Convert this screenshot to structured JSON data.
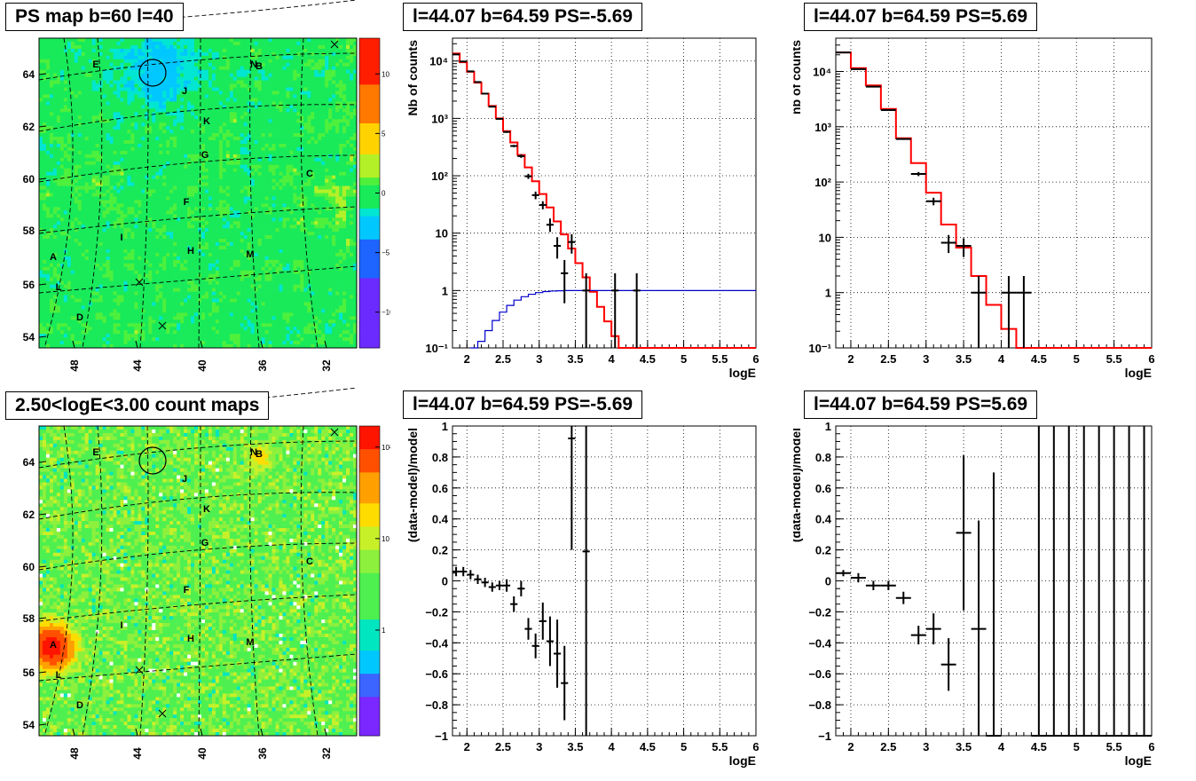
{
  "maps": [
    {
      "title": "PS map b=60 l=40",
      "type": "ps",
      "colorbar_ticks": [
        "10",
        "5",
        "0",
        "−5",
        "−10"
      ],
      "colorbar_values": [
        10,
        5,
        0,
        -5,
        -10
      ],
      "zrange": [
        -13,
        13
      ]
    },
    {
      "title": "2.50<logE<3.00 count maps",
      "type": "counts",
      "colorbar_ticks": [
        "10²",
        "10",
        "1"
      ],
      "colorbar_values": [
        100,
        10,
        1
      ],
      "zrange": [
        0.07,
        170
      ]
    }
  ],
  "map_axes": {
    "x_ticks": [
      "48",
      "44",
      "40",
      "36",
      "32"
    ],
    "y_ticks": [
      "64",
      "62",
      "60",
      "58",
      "56",
      "54"
    ]
  },
  "sources": [
    "E",
    "N",
    "B",
    "J",
    "K",
    "G",
    "C",
    "F",
    "I",
    "H",
    "M",
    "A",
    "L",
    "D"
  ],
  "chart_data": [
    {
      "type": "line",
      "title": "l=44.07 b=64.59 PS=-5.69",
      "xlabel": "logE",
      "ylabel": "Nb of counts",
      "yscale": "log",
      "xlim": [
        1.8,
        6
      ],
      "ylim": [
        0.1,
        25000
      ],
      "grid": true,
      "x_ticks": [
        "2",
        "2.5",
        "3",
        "3.5",
        "4",
        "4.5",
        "5",
        "5.5",
        "6"
      ],
      "y_ticks": [
        {
          "v": 10000,
          "label": "10⁴"
        },
        {
          "v": 1000,
          "label": "10³"
        },
        {
          "v": 100,
          "label": "10²"
        },
        {
          "v": 10,
          "label": "10"
        },
        {
          "v": 1,
          "label": "1"
        },
        {
          "v": 0.1,
          "label": "10⁻¹"
        }
      ],
      "series": [
        {
          "color": "#ff0000",
          "style": "step",
          "edges": [
            1.8,
            1.9,
            2.0,
            2.1,
            2.2,
            2.3,
            2.4,
            2.5,
            2.6,
            2.7,
            2.8,
            2.9,
            3.0,
            3.1,
            3.2,
            3.3,
            3.4,
            3.5,
            3.6,
            3.7,
            3.8,
            3.9,
            4.0,
            4.1,
            4.2,
            4.3,
            6.0
          ],
          "values": [
            13500,
            9500,
            6500,
            4200,
            2700,
            1650,
            1000,
            600,
            380,
            230,
            140,
            80,
            48,
            28,
            16,
            9.5,
            5.4,
            3.0,
            1.7,
            0.95,
            0.52,
            0.29,
            0.16,
            0.09,
            0.09,
            0.09
          ]
        },
        {
          "color": "#0000cc",
          "style": "step",
          "edges": [
            2.05,
            2.15,
            2.25,
            2.35,
            2.45,
            2.55,
            2.65,
            2.75,
            2.85,
            2.95,
            3.05,
            3.15,
            3.25,
            3.35,
            3.45,
            3.55,
            6.0
          ],
          "values": [
            0.1,
            0.13,
            0.2,
            0.3,
            0.42,
            0.55,
            0.68,
            0.78,
            0.86,
            0.92,
            0.96,
            0.98,
            0.99,
            1.0,
            1.0,
            1.0
          ]
        }
      ],
      "points": [
        {
          "x": 1.85,
          "y": 13000,
          "ylo": 12800,
          "yhi": 13200
        },
        {
          "x": 1.95,
          "y": 9800,
          "ylo": 9600,
          "yhi": 10000
        },
        {
          "x": 2.05,
          "y": 6600,
          "ylo": 6450,
          "yhi": 6750
        },
        {
          "x": 2.15,
          "y": 4300,
          "ylo": 4200,
          "yhi": 4400
        },
        {
          "x": 2.25,
          "y": 2700,
          "ylo": 2650,
          "yhi": 2750
        },
        {
          "x": 2.35,
          "y": 1600,
          "ylo": 1560,
          "yhi": 1640
        },
        {
          "x": 2.45,
          "y": 980,
          "ylo": 950,
          "yhi": 1010
        },
        {
          "x": 2.55,
          "y": 580,
          "ylo": 560,
          "yhi": 600
        },
        {
          "x": 2.65,
          "y": 330,
          "ylo": 315,
          "yhi": 345
        },
        {
          "x": 2.75,
          "y": 220,
          "ylo": 205,
          "yhi": 235
        },
        {
          "x": 2.85,
          "y": 98,
          "ylo": 88,
          "yhi": 108
        },
        {
          "x": 2.95,
          "y": 46,
          "ylo": 39,
          "yhi": 53
        },
        {
          "x": 3.05,
          "y": 31,
          "ylo": 26,
          "yhi": 36
        },
        {
          "x": 3.15,
          "y": 14,
          "ylo": 10.5,
          "yhi": 18
        },
        {
          "x": 3.25,
          "y": 6,
          "ylo": 3.6,
          "yhi": 8.5
        },
        {
          "x": 3.35,
          "y": 2,
          "ylo": 0.6,
          "yhi": 3.4
        },
        {
          "x": 3.45,
          "y": 7,
          "ylo": 4.4,
          "yhi": 9.6
        },
        {
          "x": 3.65,
          "y": 1,
          "ylo": 0.1,
          "yhi": 2
        },
        {
          "x": 4.05,
          "y": 1,
          "ylo": 0.1,
          "yhi": 2
        },
        {
          "x": 4.35,
          "y": 1,
          "ylo": 0.1,
          "yhi": 2
        }
      ]
    },
    {
      "type": "line",
      "title": "l=44.07 b=64.59 PS=5.69",
      "xlabel": "logE",
      "ylabel": "nb of counts",
      "yscale": "log",
      "xlim": [
        1.8,
        6
      ],
      "ylim": [
        0.1,
        40000
      ],
      "grid": true,
      "x_ticks": [
        "2",
        "2.5",
        "3",
        "3.5",
        "4",
        "4.5",
        "5",
        "5.5",
        "6"
      ],
      "y_ticks": [
        {
          "v": 10000,
          "label": "10⁴"
        },
        {
          "v": 1000,
          "label": "10³"
        },
        {
          "v": 100,
          "label": "10²"
        },
        {
          "v": 10,
          "label": "10"
        },
        {
          "v": 1,
          "label": "1"
        },
        {
          "v": 0.1,
          "label": "10⁻¹"
        }
      ],
      "series": [
        {
          "color": "#ff0000",
          "style": "step",
          "edges": [
            1.8,
            2.0,
            2.2,
            2.4,
            2.6,
            2.8,
            3.0,
            3.2,
            3.4,
            3.6,
            3.8,
            4.0,
            4.2,
            6.0
          ],
          "values": [
            22000,
            11500,
            5600,
            2100,
            620,
            220,
            64,
            17,
            6.5,
            2.0,
            0.6,
            0.22,
            0.09
          ]
        }
      ],
      "points": [
        {
          "x": 1.9,
          "y": 22000,
          "ylo": 21800,
          "yhi": 22200
        },
        {
          "x": 2.1,
          "y": 11000,
          "ylo": 10850,
          "yhi": 11150
        },
        {
          "x": 2.3,
          "y": 5300,
          "ylo": 5200,
          "yhi": 5400
        },
        {
          "x": 2.5,
          "y": 2000,
          "ylo": 1950,
          "yhi": 2050
        },
        {
          "x": 2.7,
          "y": 600,
          "ylo": 580,
          "yhi": 620
        },
        {
          "x": 2.9,
          "y": 140,
          "ylo": 128,
          "yhi": 152
        },
        {
          "x": 3.1,
          "y": 45,
          "ylo": 38,
          "yhi": 52
        },
        {
          "x": 3.3,
          "y": 8,
          "ylo": 5.2,
          "yhi": 11
        },
        {
          "x": 3.5,
          "y": 7,
          "ylo": 4.4,
          "yhi": 9.6
        },
        {
          "x": 3.7,
          "y": 1,
          "ylo": 0.1,
          "yhi": 2
        },
        {
          "x": 4.1,
          "y": 1,
          "ylo": 0.1,
          "yhi": 2
        },
        {
          "x": 4.3,
          "y": 1,
          "ylo": 0.1,
          "yhi": 2
        }
      ]
    },
    {
      "type": "scatter",
      "title": "l=44.07 b=64.59 PS=-5.69",
      "xlabel": "logE",
      "ylabel": "(data-model)/model",
      "yscale": "linear",
      "xlim": [
        1.8,
        6
      ],
      "ylim": [
        -1,
        1
      ],
      "grid": true,
      "x_ticks": [
        "2",
        "2.5",
        "3",
        "3.5",
        "4",
        "4.5",
        "5",
        "5.5",
        "6"
      ],
      "y_ticks": [
        {
          "v": 1,
          "label": "1"
        },
        {
          "v": 0.8,
          "label": "0.8"
        },
        {
          "v": 0.6,
          "label": "0.6"
        },
        {
          "v": 0.4,
          "label": "0.4"
        },
        {
          "v": 0.2,
          "label": "0.2"
        },
        {
          "v": 0,
          "label": "0"
        },
        {
          "v": -0.2,
          "label": "−0.2"
        },
        {
          "v": -0.4,
          "label": "−0.4"
        },
        {
          "v": -0.6,
          "label": "−0.6"
        },
        {
          "v": -0.8,
          "label": "−0.8"
        },
        {
          "v": -1,
          "label": "−1"
        }
      ],
      "series": [],
      "points": [
        {
          "x": 1.85,
          "y": 0.06,
          "ylo": 0.03,
          "yhi": 0.09
        },
        {
          "x": 1.95,
          "y": 0.06,
          "ylo": 0.03,
          "yhi": 0.09
        },
        {
          "x": 2.05,
          "y": 0.04,
          "ylo": 0.01,
          "yhi": 0.07
        },
        {
          "x": 2.15,
          "y": 0.01,
          "ylo": -0.02,
          "yhi": 0.04
        },
        {
          "x": 2.25,
          "y": -0.01,
          "ylo": -0.04,
          "yhi": 0.02
        },
        {
          "x": 2.35,
          "y": -0.04,
          "ylo": -0.07,
          "yhi": -0.01
        },
        {
          "x": 2.45,
          "y": -0.03,
          "ylo": -0.06,
          "yhi": 0.0
        },
        {
          "x": 2.55,
          "y": -0.03,
          "ylo": -0.07,
          "yhi": 0.01
        },
        {
          "x": 2.65,
          "y": -0.15,
          "ylo": -0.2,
          "yhi": -0.1
        },
        {
          "x": 2.75,
          "y": -0.05,
          "ylo": -0.1,
          "yhi": 0.0
        },
        {
          "x": 2.85,
          "y": -0.31,
          "ylo": -0.38,
          "yhi": -0.24
        },
        {
          "x": 2.95,
          "y": -0.42,
          "ylo": -0.5,
          "yhi": -0.34
        },
        {
          "x": 3.05,
          "y": -0.26,
          "ylo": -0.38,
          "yhi": -0.14
        },
        {
          "x": 3.15,
          "y": -0.39,
          "ylo": -0.55,
          "yhi": -0.23
        },
        {
          "x": 3.25,
          "y": -0.47,
          "ylo": -0.69,
          "yhi": -0.25
        },
        {
          "x": 3.35,
          "y": -0.66,
          "ylo": -0.9,
          "yhi": -0.42
        },
        {
          "x": 3.45,
          "y": 0.92,
          "ylo": 0.2,
          "yhi": 1.0
        },
        {
          "x": 3.65,
          "y": 0.19,
          "ylo": -1.0,
          "yhi": 1.0
        }
      ]
    },
    {
      "type": "scatter",
      "title": "l=44.07 b=64.59 PS=5.69",
      "xlabel": "logE",
      "ylabel": "(data-model)/model",
      "yscale": "linear",
      "xlim": [
        1.8,
        6
      ],
      "ylim": [
        -1,
        1
      ],
      "grid": true,
      "x_ticks": [
        "2",
        "2.5",
        "3",
        "3.5",
        "4",
        "4.5",
        "5",
        "5.5",
        "6"
      ],
      "y_ticks": [
        {
          "v": 1,
          "label": "1"
        },
        {
          "v": 0.8,
          "label": "0.8"
        },
        {
          "v": 0.6,
          "label": "0.6"
        },
        {
          "v": 0.4,
          "label": "0.4"
        },
        {
          "v": 0.2,
          "label": "0.2"
        },
        {
          "v": 0,
          "label": "0"
        },
        {
          "v": -0.2,
          "label": "−0.2"
        },
        {
          "v": -0.4,
          "label": "−0.4"
        },
        {
          "v": -0.6,
          "label": "−0.6"
        },
        {
          "v": -0.8,
          "label": "−0.8"
        },
        {
          "v": -1,
          "label": "−1"
        }
      ],
      "series": [],
      "points": [
        {
          "x": 1.9,
          "y": 0.05,
          "ylo": 0.03,
          "yhi": 0.07
        },
        {
          "x": 2.1,
          "y": 0.02,
          "ylo": -0.01,
          "yhi": 0.05
        },
        {
          "x": 2.3,
          "y": -0.03,
          "ylo": -0.06,
          "yhi": 0.0
        },
        {
          "x": 2.5,
          "y": -0.03,
          "ylo": -0.06,
          "yhi": 0.0
        },
        {
          "x": 2.7,
          "y": -0.11,
          "ylo": -0.15,
          "yhi": -0.07
        },
        {
          "x": 2.9,
          "y": -0.35,
          "ylo": -0.41,
          "yhi": -0.29
        },
        {
          "x": 3.1,
          "y": -0.31,
          "ylo": -0.41,
          "yhi": -0.21
        },
        {
          "x": 3.3,
          "y": -0.54,
          "ylo": -0.71,
          "yhi": -0.37
        },
        {
          "x": 3.5,
          "y": 0.31,
          "ylo": -0.19,
          "yhi": 0.81
        },
        {
          "x": 3.7,
          "y": -0.31,
          "ylo": -1.0,
          "yhi": 0.39
        },
        {
          "x": 3.9,
          "y": -1.0,
          "ylo": -1.0,
          "yhi": 0.7
        },
        {
          "x": 4.5,
          "y": -1.0,
          "ylo": -1.0,
          "yhi": 1.0
        },
        {
          "x": 4.7,
          "y": -1.0,
          "ylo": -1.0,
          "yhi": 1.0
        },
        {
          "x": 4.9,
          "y": -1.0,
          "ylo": -1.0,
          "yhi": 1.0
        },
        {
          "x": 5.1,
          "y": -1.0,
          "ylo": -1.0,
          "yhi": 1.0
        },
        {
          "x": 5.3,
          "y": -1.0,
          "ylo": -1.0,
          "yhi": 1.0
        },
        {
          "x": 5.5,
          "y": -1.0,
          "ylo": -1.0,
          "yhi": 1.0
        },
        {
          "x": 5.7,
          "y": -1.0,
          "ylo": -1.0,
          "yhi": 1.0
        },
        {
          "x": 5.9,
          "y": -1.0,
          "ylo": -1.0,
          "yhi": 1.0
        }
      ]
    }
  ]
}
